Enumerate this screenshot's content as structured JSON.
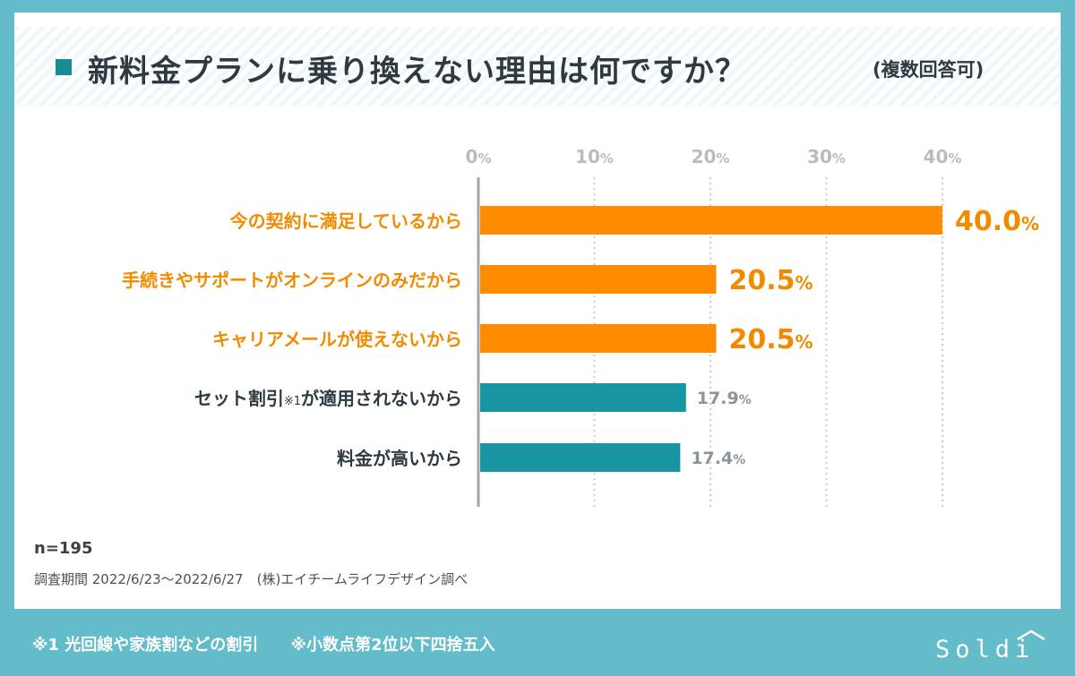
{
  "title": "新料金プランに乗り換えない理由は何ですか？",
  "title_note": "(複数回答可)",
  "sample_size": "n=195",
  "survey_period": "調査期間 2022/6/23〜2022/6/27　(株)エイチームライフデザイン調べ",
  "footnotes": [
    "※1 光回線や家族割などの割引",
    "※小数点第2位以下四捨五入"
  ],
  "brand_logo_text": "Soldi",
  "colors": {
    "background_frame": "#62bcc9",
    "title_marker": "#1a8a97",
    "highlight_bar": "#ff8c00",
    "normal_bar": "#1a95a3",
    "highlight_label": "#f28a00",
    "normal_label": "#2f3a40",
    "grid": "#c8ccd0",
    "tick_text": "#b8bcc0",
    "small_value_text": "#8a959b"
  },
  "chart_data": {
    "type": "bar",
    "orientation": "horizontal",
    "unit": "%",
    "categories": [
      "今の契約に満足しているから",
      "手続きやサポートがオンラインのみだから",
      "キャリアメールが使えないから",
      "セット割引※1が適用されないから",
      "料金が高いから"
    ],
    "category_parts": [
      {
        "main": "今の契約に満足しているから",
        "note": "",
        "rest": ""
      },
      {
        "main": "手続きやサポートがオンラインのみだから",
        "note": "",
        "rest": ""
      },
      {
        "main": "キャリアメールが使えないから",
        "note": "",
        "rest": ""
      },
      {
        "main": "セット割引",
        "note": "※1",
        "rest": "が適用されないから"
      },
      {
        "main": "料金が高いから",
        "note": "",
        "rest": ""
      }
    ],
    "values": [
      40.0,
      20.5,
      20.5,
      17.9,
      17.4
    ],
    "value_labels": [
      {
        "num": "40.0",
        "unit": "%"
      },
      {
        "num": "20.5",
        "unit": "%"
      },
      {
        "num": "20.5",
        "unit": "%"
      },
      {
        "num": "17.9",
        "unit": "%"
      },
      {
        "num": "17.4",
        "unit": "%"
      }
    ],
    "highlighted": [
      true,
      true,
      true,
      false,
      false
    ],
    "xlim": [
      0,
      40
    ],
    "xticks": [
      0,
      10,
      20,
      30,
      40
    ],
    "xtick_labels": [
      {
        "num": "0",
        "unit": "%"
      },
      {
        "num": "10",
        "unit": "%"
      },
      {
        "num": "20",
        "unit": "%"
      },
      {
        "num": "30",
        "unit": "%"
      },
      {
        "num": "40",
        "unit": "%"
      }
    ],
    "grid": true,
    "grid_style": "dotted vertical"
  }
}
